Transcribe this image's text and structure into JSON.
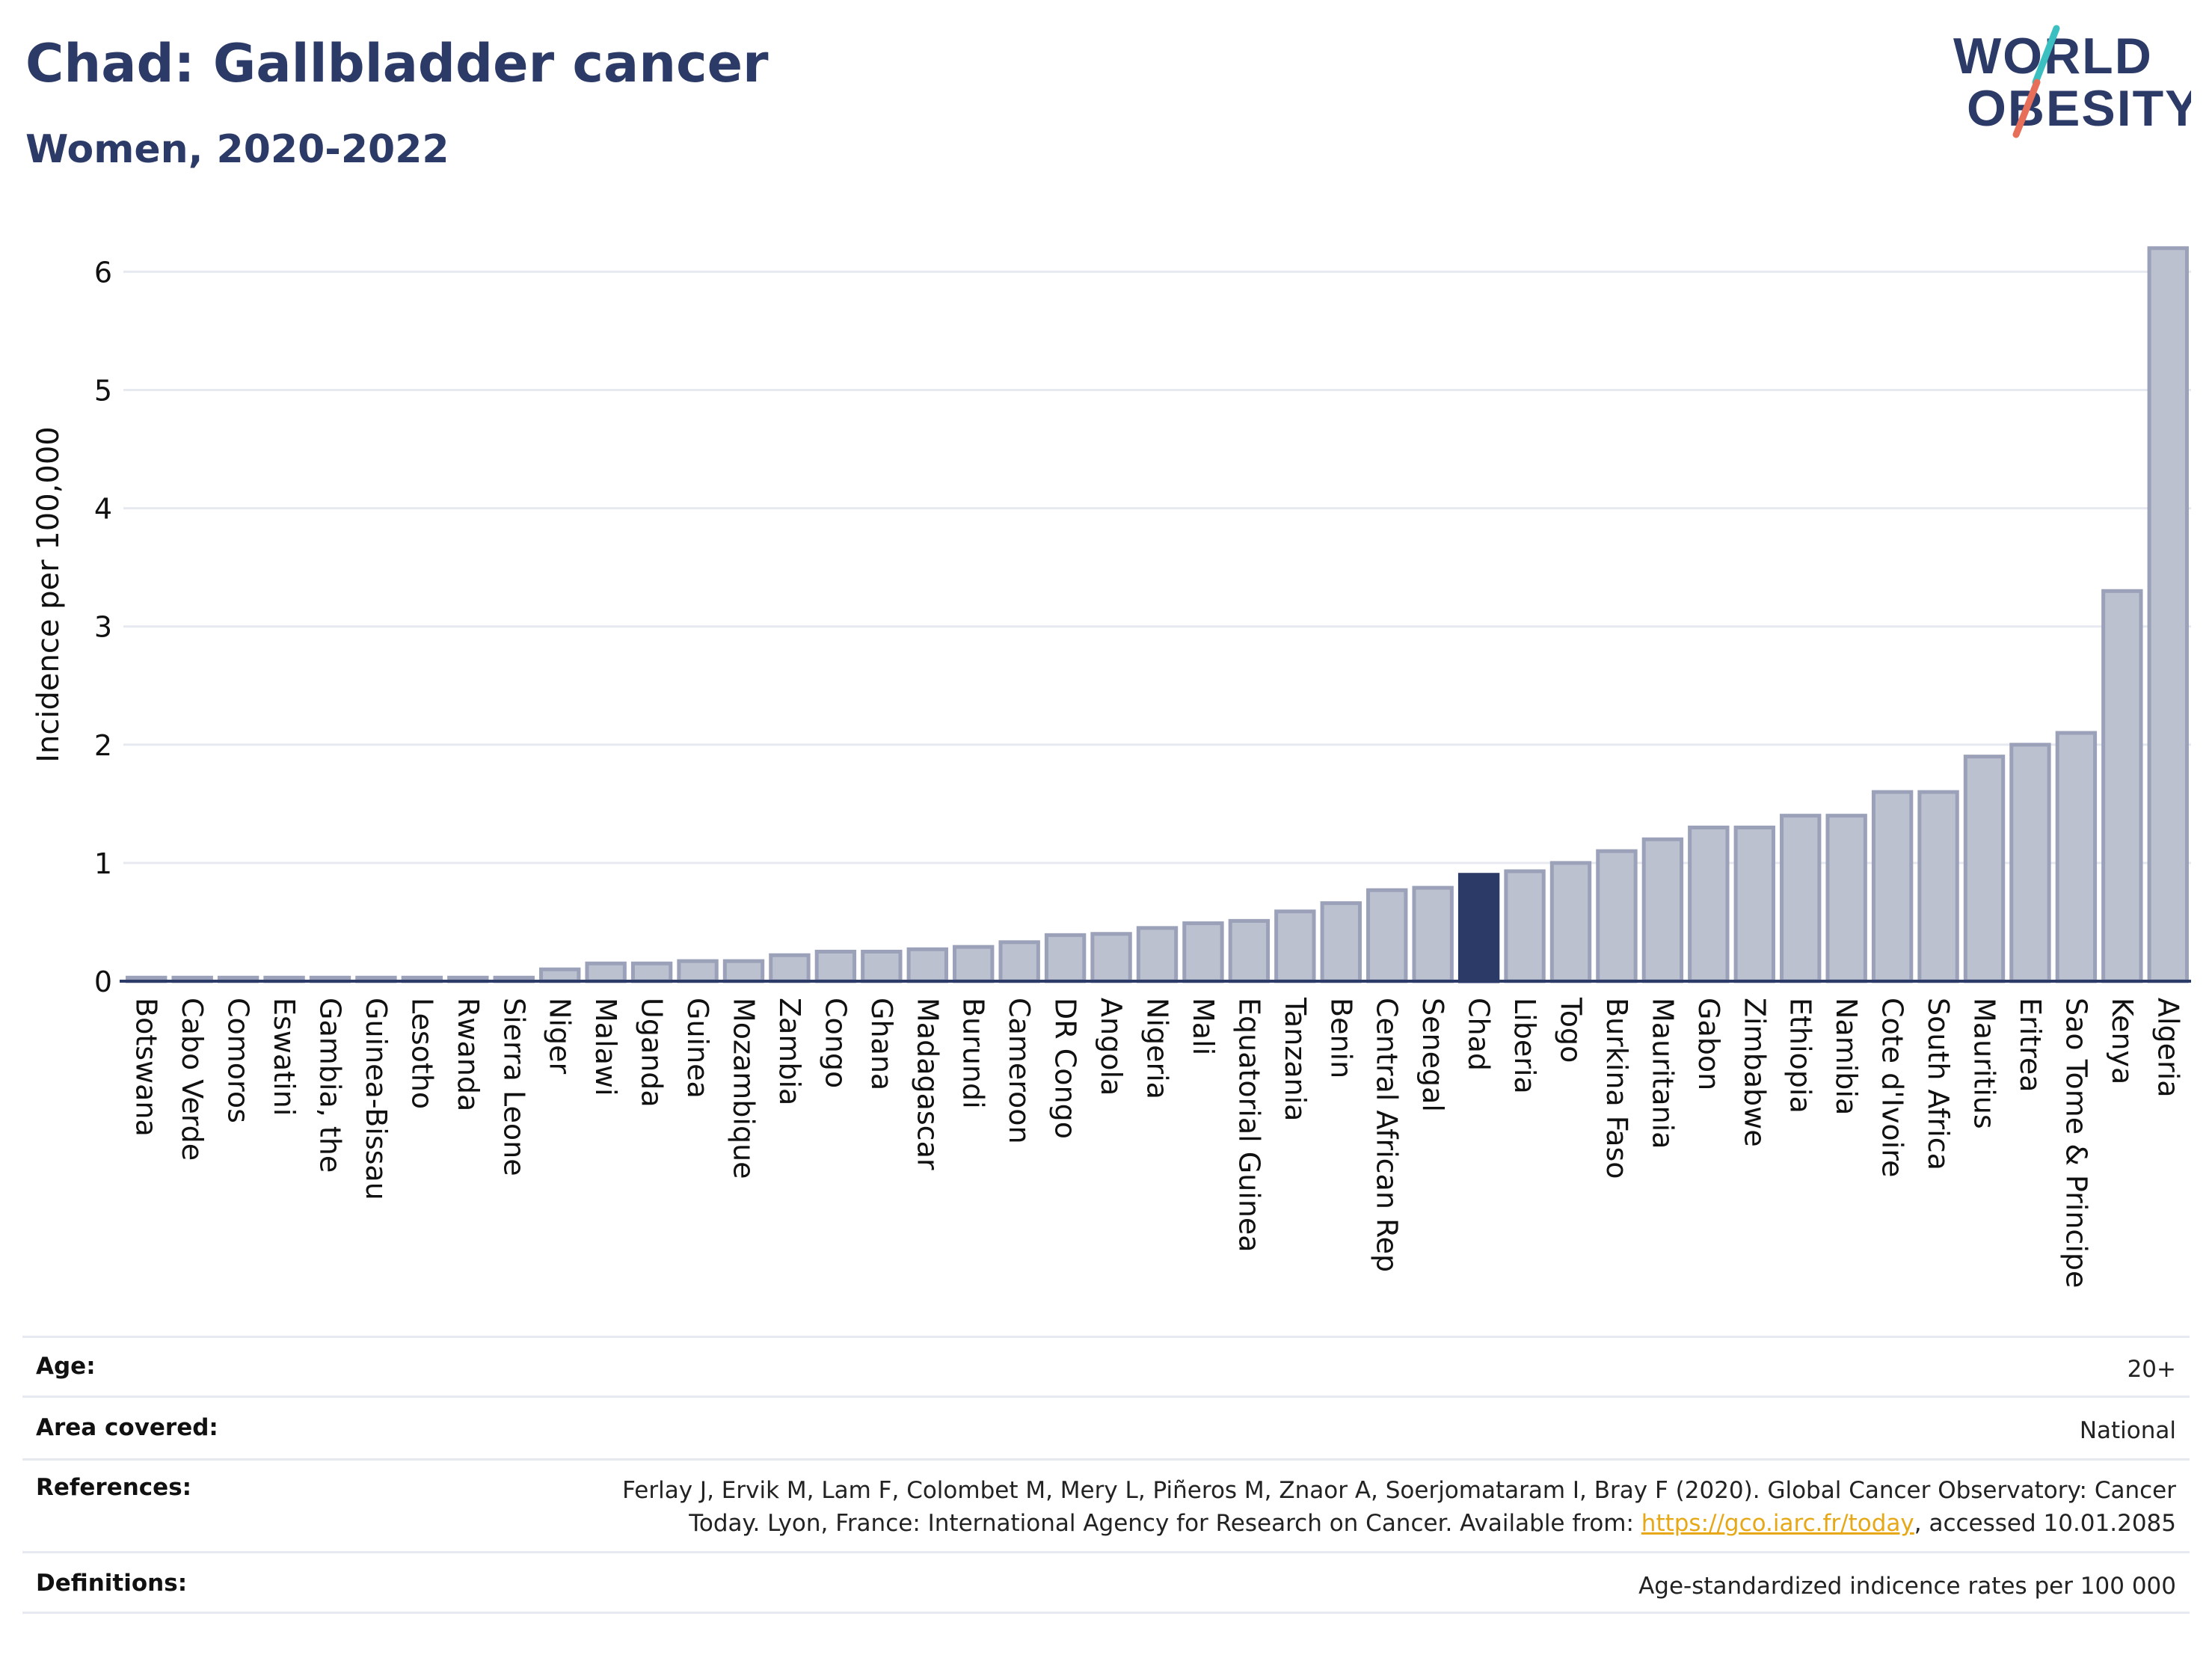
{
  "header": {
    "title": "Chad: Gallbladder cancer",
    "subtitle": "Women, 2020-2022"
  },
  "logo": {
    "line1": "WORLD",
    "line2": "OBESITY",
    "colors": {
      "text": "#2b3a67",
      "slash_teal": "#3cbfc0",
      "slash_coral": "#e76f5a"
    }
  },
  "chart_data": {
    "type": "bar",
    "ylabel": "Incidence per 100,000",
    "ylim": [
      0,
      6.3
    ],
    "yticks": [
      0,
      1,
      2,
      3,
      4,
      5,
      6
    ],
    "grid": true,
    "highlight": "Chad",
    "colors": {
      "bar": "#bcc1d0",
      "bar_border": "#9aa1b8",
      "highlight": "#2b3a67",
      "axis": "#2b3a67",
      "grid": "#e6e9ef"
    },
    "categories": [
      "Botswana",
      "Cabo Verde",
      "Comoros",
      "Eswatini",
      "Gambia, the",
      "Guinea-Bissau",
      "Lesotho",
      "Rwanda",
      "Sierra Leone",
      "Niger",
      "Malawi",
      "Uganda",
      "Guinea",
      "Mozambique",
      "Zambia",
      "Congo",
      "Ghana",
      "Madagascar",
      "Burundi",
      "Cameroon",
      "DR Congo",
      "Angola",
      "Nigeria",
      "Mali",
      "Equatorial Guinea",
      "Tanzania",
      "Benin",
      "Central African Rep",
      "Senegal",
      "Chad",
      "Liberia",
      "Togo",
      "Burkina Faso",
      "Mauritania",
      "Gabon",
      "Zimbabwe",
      "Ethiopia",
      "Namibia",
      "Cote d'Ivoire",
      "South Africa",
      "Mauritius",
      "Eritrea",
      "Sao Tome & Principe",
      "Kenya",
      "Algeria"
    ],
    "values": [
      0.03,
      0.03,
      0.03,
      0.03,
      0.03,
      0.03,
      0.03,
      0.03,
      0.03,
      0.1,
      0.15,
      0.15,
      0.17,
      0.17,
      0.22,
      0.25,
      0.25,
      0.27,
      0.29,
      0.33,
      0.39,
      0.4,
      0.45,
      0.49,
      0.51,
      0.59,
      0.66,
      0.77,
      0.79,
      0.9,
      0.93,
      1.0,
      1.1,
      1.2,
      1.3,
      1.3,
      1.4,
      1.4,
      1.6,
      1.6,
      1.9,
      2.0,
      2.1,
      3.3,
      6.2
    ]
  },
  "meta": {
    "age_label": "Age:",
    "age_value": "20+",
    "area_label": "Area covered:",
    "area_value": "National",
    "references_label": "References:",
    "references_line1": "Ferlay J, Ervik M, Lam F, Colombet M, Mery L, Piñeros M, Znaor A, Soerjomataram I, Bray F (2020). Global Cancer Observatory: Cancer",
    "references_line2_pre": "Today. Lyon, France: International Agency for Research on Cancer. Available from: ",
    "references_link": "https://gco.iarc.fr/today",
    "references_line2_post": ", accessed 10.01.2085",
    "definitions_label": "Definitions:",
    "definitions_value": "Age-standardized indicence rates per 100 000"
  }
}
